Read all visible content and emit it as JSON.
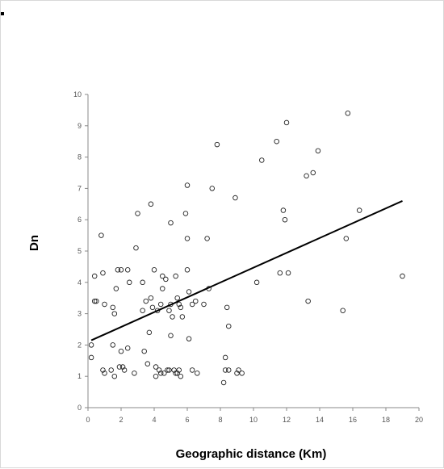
{
  "chart_data": {
    "type": "scatter",
    "title": "",
    "xlabel": "Geographic distance (Km)",
    "ylabel": "Dn",
    "xlim": [
      0,
      20
    ],
    "ylim": [
      0,
      10
    ],
    "xticks": [
      "0",
      "2",
      "4",
      "6",
      "8",
      "10",
      "12",
      "14",
      "16",
      "18",
      "20"
    ],
    "yticks": [
      "0",
      "1",
      "2",
      "3",
      "4",
      "5",
      "6",
      "7",
      "8",
      "9",
      "10"
    ],
    "grid": false,
    "legend": "none",
    "marker": "open-circle",
    "trendline": {
      "x": [
        0.2,
        19
      ],
      "y": [
        2.15,
        6.6
      ]
    },
    "points": [
      [
        0.2,
        2.0
      ],
      [
        0.2,
        1.6
      ],
      [
        0.4,
        3.4
      ],
      [
        0.4,
        4.2
      ],
      [
        0.5,
        3.4
      ],
      [
        0.8,
        5.5
      ],
      [
        0.9,
        4.3
      ],
      [
        0.9,
        1.2
      ],
      [
        1.0,
        1.1
      ],
      [
        1.0,
        3.3
      ],
      [
        1.4,
        1.2
      ],
      [
        1.5,
        2.0
      ],
      [
        1.5,
        3.2
      ],
      [
        1.6,
        1.0
      ],
      [
        1.6,
        3.0
      ],
      [
        1.7,
        3.8
      ],
      [
        1.8,
        4.4
      ],
      [
        1.9,
        1.3
      ],
      [
        2.0,
        1.8
      ],
      [
        2.0,
        4.4
      ],
      [
        2.1,
        1.3
      ],
      [
        2.2,
        1.2
      ],
      [
        2.4,
        4.4
      ],
      [
        2.4,
        1.9
      ],
      [
        2.5,
        4.0
      ],
      [
        2.8,
        1.1
      ],
      [
        2.9,
        5.1
      ],
      [
        3.0,
        6.2
      ],
      [
        3.3,
        4.0
      ],
      [
        3.3,
        3.1
      ],
      [
        3.4,
        1.8
      ],
      [
        3.5,
        3.4
      ],
      [
        3.6,
        1.4
      ],
      [
        3.7,
        2.4
      ],
      [
        3.8,
        6.5
      ],
      [
        3.8,
        3.5
      ],
      [
        3.9,
        3.2
      ],
      [
        4.0,
        4.4
      ],
      [
        4.1,
        1.3
      ],
      [
        4.1,
        1.0
      ],
      [
        4.2,
        3.1
      ],
      [
        4.3,
        1.2
      ],
      [
        4.4,
        1.1
      ],
      [
        4.4,
        3.3
      ],
      [
        4.5,
        4.2
      ],
      [
        4.5,
        3.8
      ],
      [
        4.6,
        1.1
      ],
      [
        4.7,
        4.1
      ],
      [
        4.8,
        1.2
      ],
      [
        4.9,
        3.1
      ],
      [
        4.9,
        1.2
      ],
      [
        5.0,
        5.9
      ],
      [
        5.0,
        3.3
      ],
      [
        5.0,
        2.3
      ],
      [
        5.1,
        2.9
      ],
      [
        5.2,
        1.2
      ],
      [
        5.3,
        4.2
      ],
      [
        5.3,
        1.1
      ],
      [
        5.4,
        3.5
      ],
      [
        5.4,
        1.1
      ],
      [
        5.5,
        1.2
      ],
      [
        5.5,
        3.3
      ],
      [
        5.6,
        3.2
      ],
      [
        5.6,
        1.0
      ],
      [
        5.7,
        2.9
      ],
      [
        5.9,
        6.2
      ],
      [
        6.0,
        7.1
      ],
      [
        6.0,
        5.4
      ],
      [
        6.0,
        4.4
      ],
      [
        6.1,
        2.2
      ],
      [
        6.1,
        3.7
      ],
      [
        6.3,
        3.3
      ],
      [
        6.3,
        1.2
      ],
      [
        6.5,
        3.4
      ],
      [
        6.6,
        1.1
      ],
      [
        7.0,
        3.3
      ],
      [
        7.2,
        5.4
      ],
      [
        7.3,
        3.8
      ],
      [
        7.5,
        7.0
      ],
      [
        7.8,
        8.4
      ],
      [
        8.2,
        0.8
      ],
      [
        8.3,
        1.6
      ],
      [
        8.3,
        1.2
      ],
      [
        8.4,
        3.2
      ],
      [
        8.5,
        1.2
      ],
      [
        8.5,
        2.6
      ],
      [
        8.9,
        6.7
      ],
      [
        9.0,
        1.1
      ],
      [
        9.1,
        1.2
      ],
      [
        9.3,
        1.1
      ],
      [
        10.2,
        4.0
      ],
      [
        10.5,
        7.9
      ],
      [
        11.4,
        8.5
      ],
      [
        11.6,
        4.3
      ],
      [
        11.8,
        6.3
      ],
      [
        11.9,
        6.0
      ],
      [
        12.0,
        9.1
      ],
      [
        12.1,
        4.3
      ],
      [
        13.2,
        7.4
      ],
      [
        13.3,
        3.4
      ],
      [
        13.6,
        7.5
      ],
      [
        13.9,
        8.2
      ],
      [
        15.4,
        3.1
      ],
      [
        15.6,
        5.4
      ],
      [
        15.7,
        9.4
      ],
      [
        16.4,
        6.3
      ],
      [
        19.0,
        4.2
      ]
    ]
  }
}
